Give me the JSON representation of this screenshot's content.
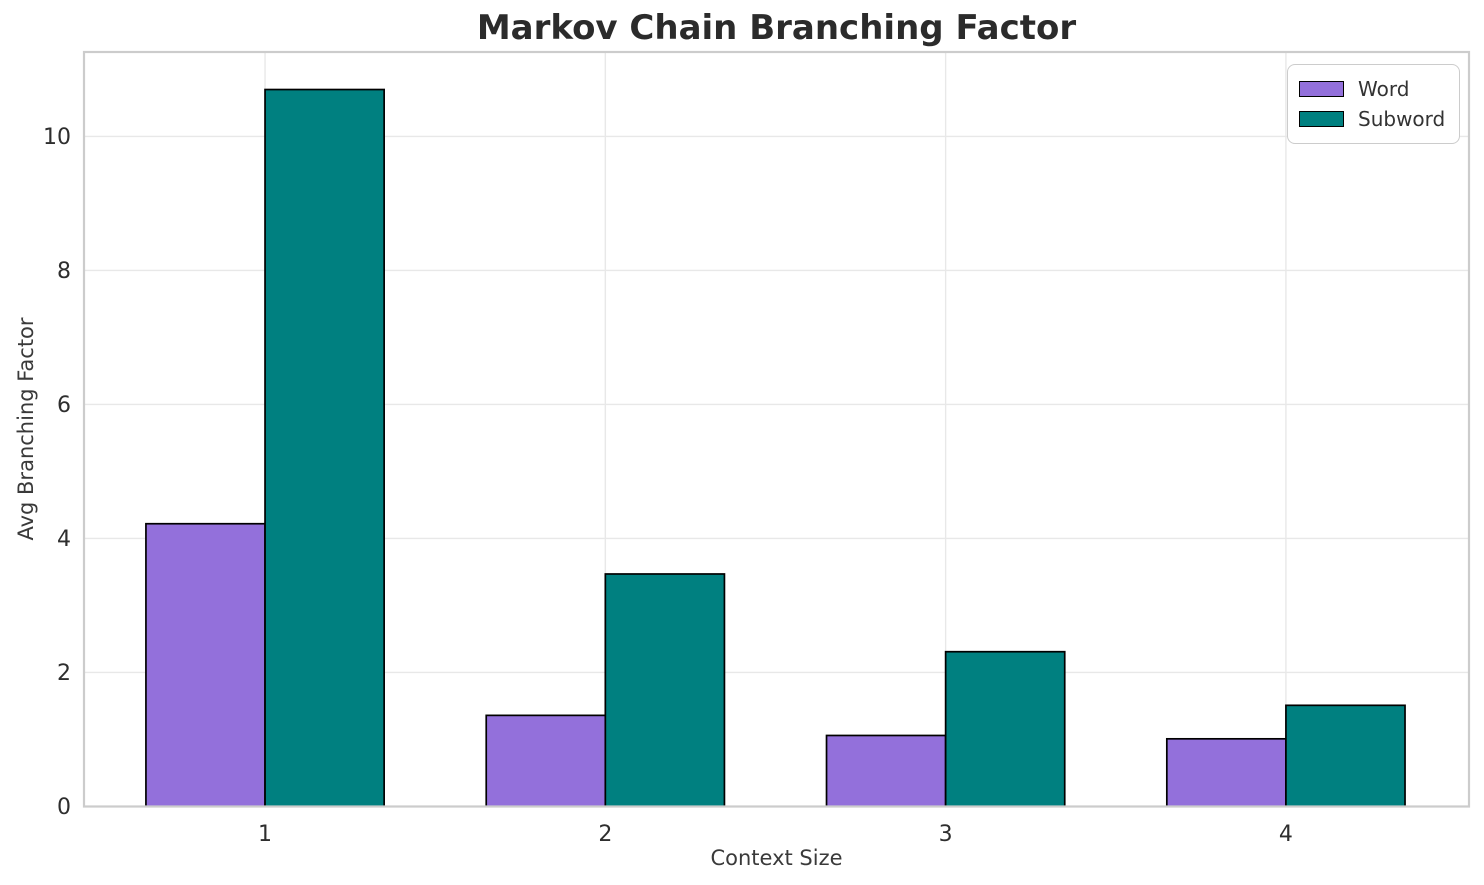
{
  "figure": {
    "title": "Markov Chain Branching Factor",
    "xlabel": "Context Size",
    "ylabel": "Avg Branching Factor"
  },
  "legend": {
    "position": "upper-right",
    "items": [
      {
        "label": "Word",
        "color": "#9370DB"
      },
      {
        "label": "Subword",
        "color": "#008080"
      }
    ]
  },
  "chart_data": {
    "type": "bar",
    "title": "Markov Chain Branching Factor",
    "xlabel": "Context Size",
    "ylabel": "Avg Branching Factor",
    "categories": [
      "1",
      "2",
      "3",
      "4"
    ],
    "series": [
      {
        "name": "Word",
        "color": "#9370DB",
        "values": [
          4.22,
          1.36,
          1.06,
          1.01
        ]
      },
      {
        "name": "Subword",
        "color": "#008080",
        "values": [
          10.7,
          3.47,
          2.31,
          1.51
        ]
      }
    ],
    "ylim": [
      0,
      11.26
    ],
    "yticks": [
      0,
      2,
      4,
      6,
      8,
      10
    ],
    "bar_width": 0.35,
    "bar_edge_color": "#000000",
    "grid": true,
    "grid_color": "#e8e8e8",
    "frame_color": "#cccccc",
    "tick_label_color": "#2e2e2e",
    "legend_position": "upper right"
  }
}
